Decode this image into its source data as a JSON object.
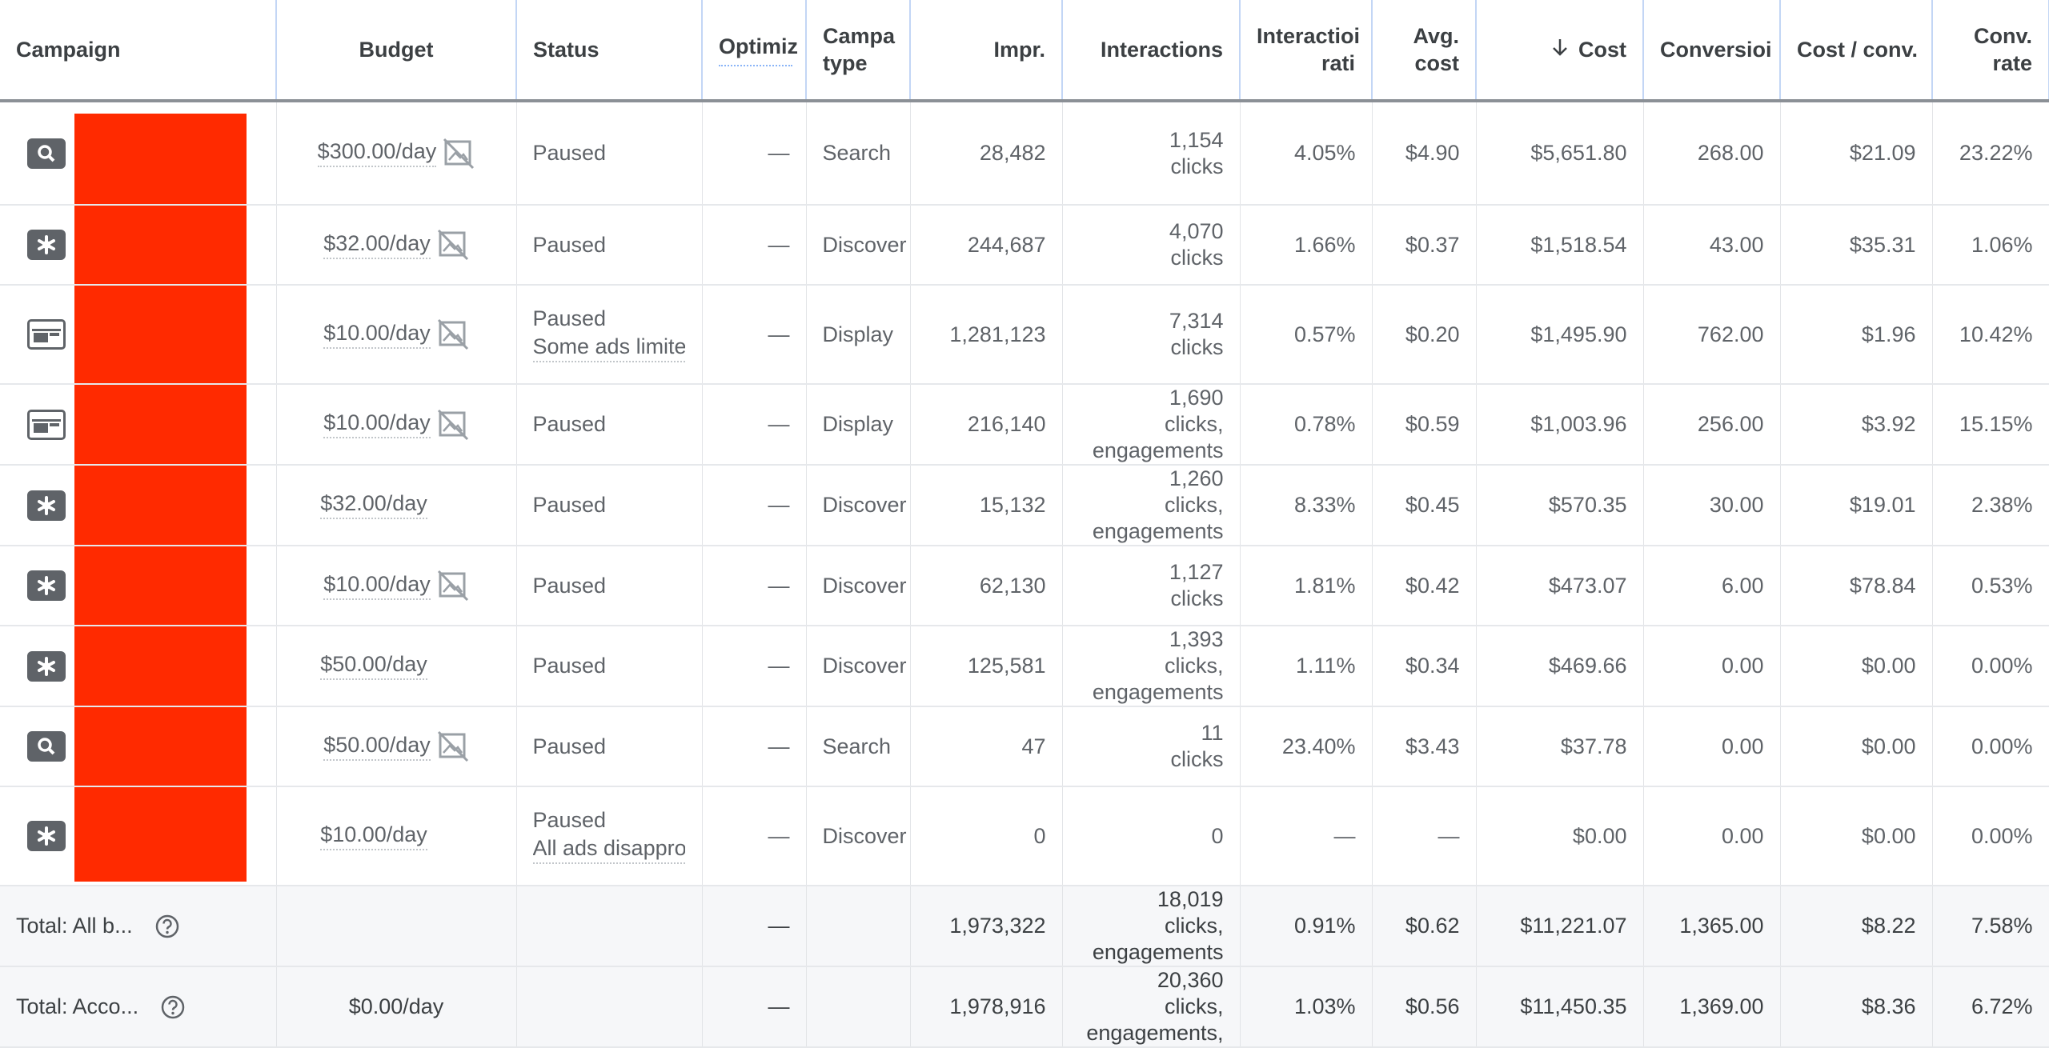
{
  "columns": [
    {
      "label": "Campaign",
      "align": "left"
    },
    {
      "label": "Budget",
      "align": "center"
    },
    {
      "label": "Status",
      "align": "left"
    },
    {
      "label": "Optimiz",
      "align": "left"
    },
    {
      "label": "Campa",
      "label2": "type",
      "align": "left"
    },
    {
      "label": "Impr.",
      "align": "right"
    },
    {
      "label": "Interactions",
      "align": "right"
    },
    {
      "label": "Interactioi",
      "label2": "rati",
      "align": "right"
    },
    {
      "label": "Avg.",
      "label2": "cost",
      "align": "right"
    },
    {
      "label": "Cost",
      "align": "right",
      "sorted": "desc"
    },
    {
      "label": "Conversioi",
      "align": "left"
    },
    {
      "label": "Cost / conv.",
      "align": "left"
    },
    {
      "label": "Conv.",
      "label2": "rate",
      "align": "right"
    }
  ],
  "rows": [
    {
      "type_icon": "search-icon",
      "budget": "$300.00/day",
      "budget_icon": true,
      "status": "Paused",
      "status_sub": "",
      "optimization": "—",
      "campaign_type": "Search",
      "impressions": "28,482",
      "interactions": [
        "1,154",
        "clicks"
      ],
      "interaction_rate": "4.05%",
      "avg_cost": "$4.90",
      "cost": "$5,651.80",
      "conversions": "268.00",
      "cost_per_conv": "$21.09",
      "conv_rate": "23.22%"
    },
    {
      "type_icon": "discovery-icon",
      "budget": "$32.00/day",
      "budget_icon": true,
      "status": "Paused",
      "status_sub": "",
      "optimization": "—",
      "campaign_type": "Discover",
      "impressions": "244,687",
      "interactions": [
        "4,070",
        "clicks"
      ],
      "interaction_rate": "1.66%",
      "avg_cost": "$0.37",
      "cost": "$1,518.54",
      "conversions": "43.00",
      "cost_per_conv": "$35.31",
      "conv_rate": "1.06%"
    },
    {
      "type_icon": "display-icon",
      "budget": "$10.00/day",
      "budget_icon": true,
      "status": "Paused",
      "status_sub": "Some ads limite",
      "optimization": "—",
      "campaign_type": "Display",
      "impressions": "1,281,123",
      "interactions": [
        "7,314",
        "clicks"
      ],
      "interaction_rate": "0.57%",
      "avg_cost": "$0.20",
      "cost": "$1,495.90",
      "conversions": "762.00",
      "cost_per_conv": "$1.96",
      "conv_rate": "10.42%"
    },
    {
      "type_icon": "display-icon",
      "budget": "$10.00/day",
      "budget_icon": true,
      "status": "Paused",
      "status_sub": "",
      "optimization": "—",
      "campaign_type": "Display",
      "impressions": "216,140",
      "interactions": [
        "1,690",
        "clicks,",
        "engagements"
      ],
      "interaction_rate": "0.78%",
      "avg_cost": "$0.59",
      "cost": "$1,003.96",
      "conversions": "256.00",
      "cost_per_conv": "$3.92",
      "conv_rate": "15.15%"
    },
    {
      "type_icon": "discovery-icon",
      "budget": "$32.00/day",
      "budget_icon": false,
      "status": "Paused",
      "status_sub": "",
      "optimization": "—",
      "campaign_type": "Discover",
      "impressions": "15,132",
      "interactions": [
        "1,260",
        "clicks,",
        "engagements"
      ],
      "interaction_rate": "8.33%",
      "avg_cost": "$0.45",
      "cost": "$570.35",
      "conversions": "30.00",
      "cost_per_conv": "$19.01",
      "conv_rate": "2.38%"
    },
    {
      "type_icon": "discovery-icon",
      "budget": "$10.00/day",
      "budget_icon": true,
      "status": "Paused",
      "status_sub": "",
      "optimization": "—",
      "campaign_type": "Discover",
      "impressions": "62,130",
      "interactions": [
        "1,127",
        "clicks"
      ],
      "interaction_rate": "1.81%",
      "avg_cost": "$0.42",
      "cost": "$473.07",
      "conversions": "6.00",
      "cost_per_conv": "$78.84",
      "conv_rate": "0.53%"
    },
    {
      "type_icon": "discovery-icon",
      "budget": "$50.00/day",
      "budget_icon": false,
      "status": "Paused",
      "status_sub": "",
      "optimization": "—",
      "campaign_type": "Discover",
      "impressions": "125,581",
      "interactions": [
        "1,393",
        "clicks,",
        "engagements"
      ],
      "interaction_rate": "1.11%",
      "avg_cost": "$0.34",
      "cost": "$469.66",
      "conversions": "0.00",
      "cost_per_conv": "$0.00",
      "conv_rate": "0.00%"
    },
    {
      "type_icon": "search-icon",
      "budget": "$50.00/day",
      "budget_icon": true,
      "status": "Paused",
      "status_sub": "",
      "optimization": "—",
      "campaign_type": "Search",
      "impressions": "47",
      "interactions": [
        "11",
        "clicks"
      ],
      "interaction_rate": "23.40%",
      "avg_cost": "$3.43",
      "cost": "$37.78",
      "conversions": "0.00",
      "cost_per_conv": "$0.00",
      "conv_rate": "0.00%"
    },
    {
      "type_icon": "discovery-icon",
      "budget": "$10.00/day",
      "budget_icon": false,
      "status": "Paused",
      "status_sub": "All ads disappro",
      "optimization": "—",
      "campaign_type": "Discover",
      "impressions": "0",
      "interactions": [
        "0"
      ],
      "interaction_rate": "—",
      "avg_cost": "—",
      "cost": "$0.00",
      "conversions": "0.00",
      "cost_per_conv": "$0.00",
      "conv_rate": "0.00%"
    }
  ],
  "totals": [
    {
      "label": "Total: All b...",
      "budget": "",
      "optimization": "—",
      "impressions": "1,973,322",
      "interactions": [
        "18,019",
        "clicks,",
        "engagements"
      ],
      "interaction_rate": "0.91%",
      "avg_cost": "$0.62",
      "cost": "$11,221.07",
      "conversions": "1,365.00",
      "cost_per_conv": "$8.22",
      "conv_rate": "7.58%"
    },
    {
      "label": "Total: Acco...",
      "budget": "$0.00/day",
      "optimization": "—",
      "impressions": "1,978,916",
      "interactions": [
        "20,360",
        "clicks,",
        "engagements,"
      ],
      "interaction_rate": "1.03%",
      "avg_cost": "$0.56",
      "cost": "$11,450.35",
      "conversions": "1,369.00",
      "cost_per_conv": "$8.36",
      "conv_rate": "6.72%"
    }
  ],
  "colors": {
    "redaction": "#ff2a00",
    "icon": "#5f6368",
    "header_border": "#c3d6f5"
  }
}
